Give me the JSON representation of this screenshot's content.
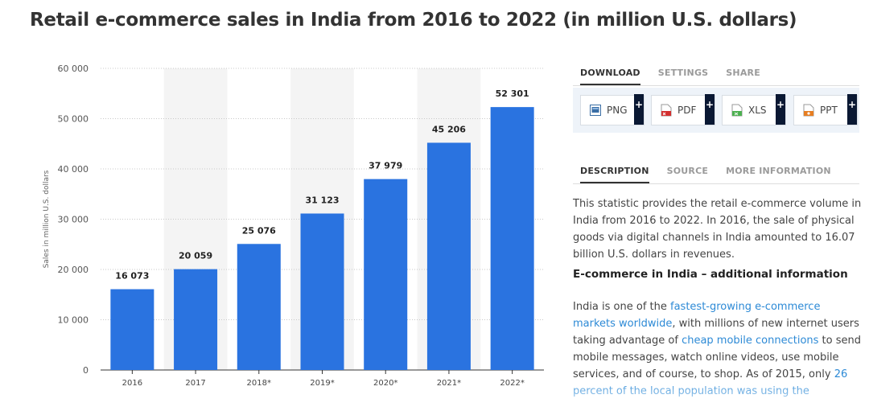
{
  "title": "Retail e-commerce sales in India from 2016 to 2022 (in million U.S. dollars)",
  "chart_data": {
    "type": "bar",
    "categories": [
      "2016",
      "2017",
      "2018*",
      "2019*",
      "2020*",
      "2021*",
      "2022*"
    ],
    "values": [
      16073,
      20059,
      25076,
      31123,
      37979,
      45206,
      52301
    ],
    "value_labels": [
      "16 073",
      "20 059",
      "25 076",
      "31 123",
      "37 979",
      "45 206",
      "52 301"
    ],
    "ylabel": "Sales in million U.S. dollars",
    "xlabel": "",
    "ylim": [
      0,
      60000
    ],
    "yticks": [
      0,
      10000,
      20000,
      30000,
      40000,
      50000,
      60000
    ],
    "ytick_labels": [
      "0",
      "10 000",
      "20 000",
      "30 000",
      "40 000",
      "50 000",
      "60 000"
    ],
    "grid": true,
    "bar_color": "#2a73e0"
  },
  "download_tabs": [
    "DOWNLOAD",
    "SETTINGS",
    "SHARE"
  ],
  "download_buttons": [
    {
      "label": "PNG",
      "icon": "png-file-icon",
      "color": "#3a6ea5"
    },
    {
      "label": "PDF",
      "icon": "pdf-file-icon",
      "color": "#d32f2f"
    },
    {
      "label": "XLS",
      "icon": "xls-file-icon",
      "color": "#4caf50"
    },
    {
      "label": "PPT",
      "icon": "ppt-file-icon",
      "color": "#e67e22"
    }
  ],
  "plus_label": "+",
  "description_tabs": [
    "DESCRIPTION",
    "SOURCE",
    "MORE INFORMATION"
  ],
  "description": {
    "paragraph": "This statistic provides the retail e-commerce volume in India from 2016 to 2022. In 2016, the sale of physical goods via digital channels in India amounted to 16.07 billion U.S. dollars in revenues.",
    "heading": "E-commerce in India – additional information",
    "p2_a": "India is one of the ",
    "p2_link1": "fastest-growing e-commerce markets worldwide",
    "p2_b": ", with millions of new internet users taking advantage of ",
    "p2_link2": "cheap mobile connections",
    "p2_c": " to send mobile messages, watch online videos, use mobile services, and of course, to shop. As of 2015, only ",
    "p2_link3": "26 percent of the local population was using the"
  },
  "colors": {
    "accent_link": "#2d8ad6",
    "tab_active": "#333333",
    "tab_inactive": "#9a9a9a",
    "plus_bg": "#0a1833"
  }
}
